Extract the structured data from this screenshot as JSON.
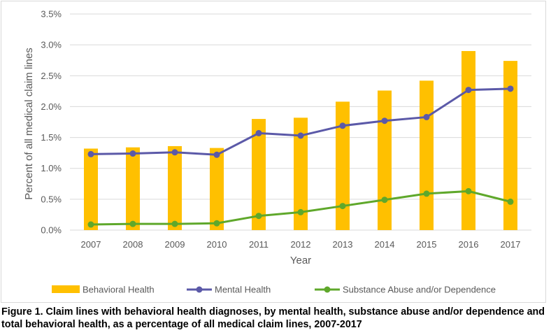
{
  "caption": "Figure 1. Claim lines with behavioral health diagnoses, by mental health, substance abuse and/or dependence and total behavioral health, as a percentage of all medical claim lines, 2007-2017",
  "chart_data": {
    "type": "bar",
    "title": "",
    "xlabel": "Year",
    "ylabel": "Percent of all medical claim lines",
    "categories": [
      "2007",
      "2008",
      "2009",
      "2010",
      "2011",
      "2012",
      "2013",
      "2014",
      "2015",
      "2016",
      "2017"
    ],
    "ylim": [
      0,
      3.5
    ],
    "yticks": [
      0,
      0.5,
      1.0,
      1.5,
      2.0,
      2.5,
      3.0,
      3.5
    ],
    "ytick_labels": [
      "0.0%",
      "0.5%",
      "1.0%",
      "1.5%",
      "2.0%",
      "2.5%",
      "3.0%",
      "3.5%"
    ],
    "grid": true,
    "legend_position": "bottom",
    "series": [
      {
        "name": "Behavioral Health",
        "type": "bar",
        "color": "#FFC000",
        "values": [
          1.32,
          1.34,
          1.36,
          1.33,
          1.8,
          1.82,
          2.08,
          2.26,
          2.42,
          2.9,
          2.74
        ]
      },
      {
        "name": "Mental Health",
        "type": "line",
        "color": "#5B59A8",
        "values": [
          1.23,
          1.24,
          1.26,
          1.22,
          1.57,
          1.53,
          1.69,
          1.77,
          1.83,
          2.27,
          2.29
        ]
      },
      {
        "name": "Substance Abuse and/or Dependence",
        "type": "line",
        "color": "#5FA82B",
        "values": [
          0.09,
          0.1,
          0.1,
          0.11,
          0.23,
          0.29,
          0.39,
          0.49,
          0.59,
          0.63,
          0.46
        ]
      }
    ]
  }
}
